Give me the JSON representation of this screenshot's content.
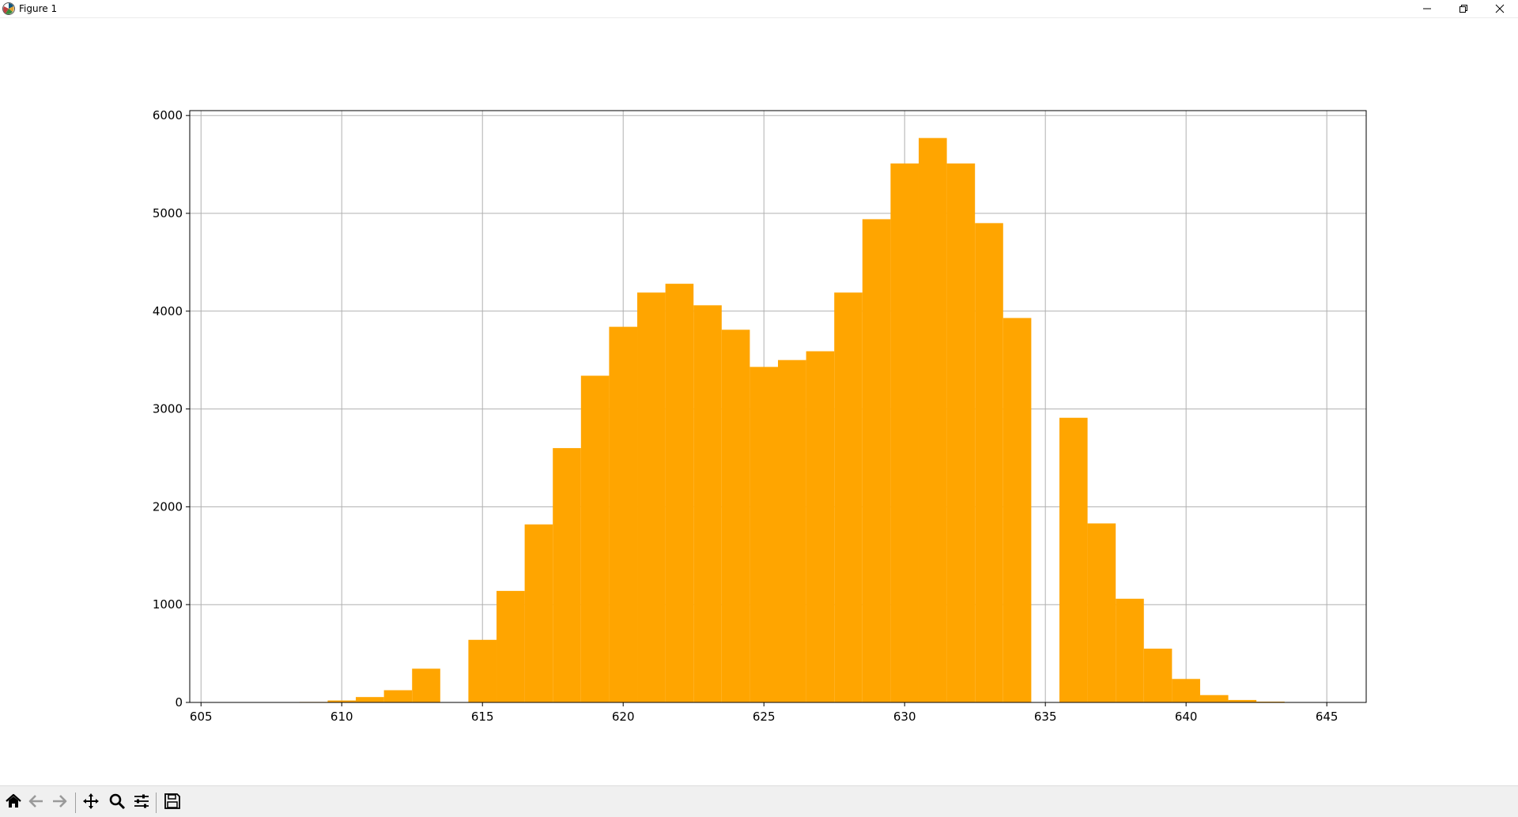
{
  "window": {
    "title": "Figure 1",
    "app_icon": "matplotlib-icon",
    "controls": [
      "minimize-icon",
      "restore-icon",
      "close-icon"
    ]
  },
  "toolbar": {
    "buttons": [
      {
        "name": "home",
        "icon": "home-icon"
      },
      {
        "name": "back",
        "icon": "arrow-left-icon"
      },
      {
        "name": "forward",
        "icon": "arrow-right-icon"
      },
      {
        "name": "pan",
        "icon": "move-icon"
      },
      {
        "name": "zoom",
        "icon": "magnifier-icon"
      },
      {
        "name": "configure-subplots",
        "icon": "sliders-icon"
      },
      {
        "name": "save",
        "icon": "floppy-disk-icon"
      }
    ]
  },
  "chart_data": {
    "type": "bar",
    "title": "",
    "xlabel": "",
    "ylabel": "",
    "bar_color": "#ffa500",
    "grid": true,
    "xlim": [
      604.6,
      646.4
    ],
    "ylim": [
      0,
      6050
    ],
    "xticks": [
      605,
      610,
      615,
      620,
      625,
      630,
      635,
      640,
      645
    ],
    "yticks": [
      0,
      1000,
      2000,
      3000,
      4000,
      5000,
      6000
    ],
    "bin_width": 1,
    "bin_starts": [
      607.5,
      608.5,
      609.5,
      610.5,
      611.5,
      612.5,
      613.5,
      614.5,
      615.5,
      616.5,
      617.5,
      618.5,
      619.5,
      620.5,
      621.5,
      622.5,
      623.5,
      624.5,
      625.5,
      626.5,
      627.5,
      628.5,
      629.5,
      630.5,
      631.5,
      632.5,
      633.5,
      634.5,
      635.5,
      636.5,
      637.5,
      638.5,
      639.5,
      640.5,
      641.5,
      642.5,
      643.5
    ],
    "values": [
      2,
      5,
      20,
      55,
      125,
      345,
      0,
      640,
      1140,
      1820,
      2600,
      3340,
      3840,
      4190,
      4280,
      4060,
      3810,
      3430,
      3500,
      3590,
      4190,
      4940,
      5510,
      5770,
      5510,
      4900,
      3930,
      0,
      2910,
      1830,
      1060,
      550,
      240,
      75,
      25,
      8,
      2
    ]
  }
}
